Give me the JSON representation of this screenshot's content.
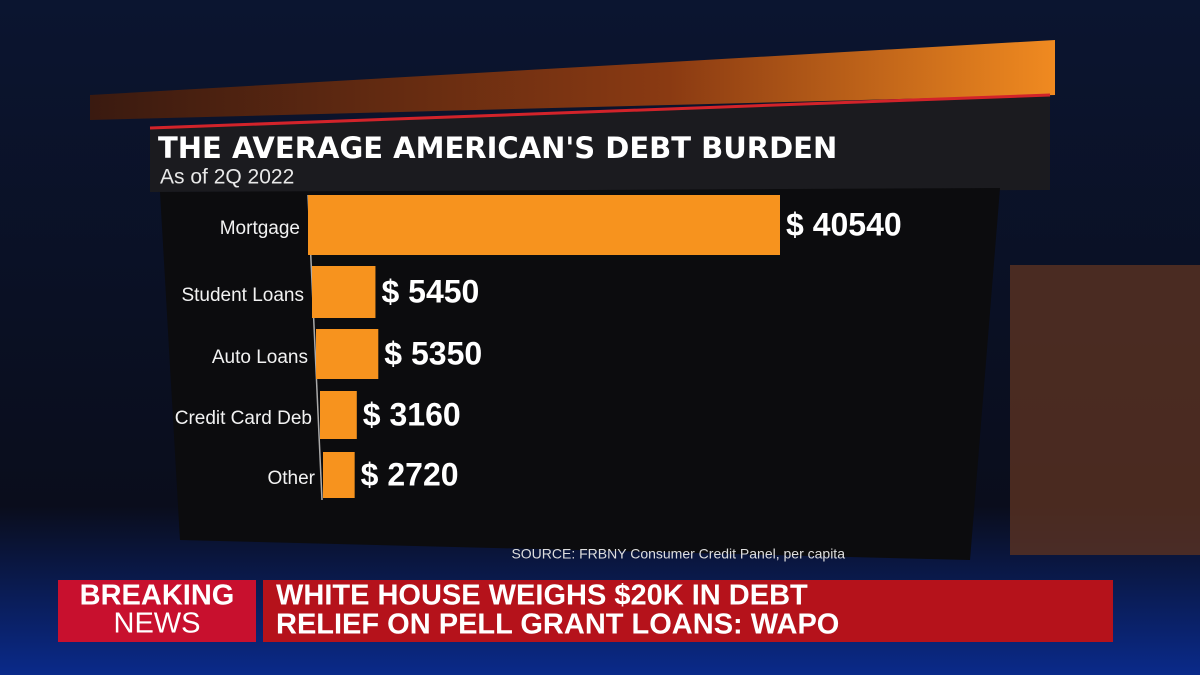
{
  "chart_data": {
    "type": "bar",
    "orientation": "horizontal",
    "title": "THE AVERAGE AMERICAN'S DEBT BURDEN",
    "subtitle": "As of 2Q 2022",
    "categories": [
      "Mortgage",
      "Student Loans",
      "Auto Loans",
      "Credit Card Deb",
      "Other"
    ],
    "values": [
      40540,
      5450,
      5350,
      3160,
      2720
    ],
    "value_labels": [
      "$ 40540",
      "$ 5450",
      "$ 5350",
      "$ 3160",
      "$ 2720"
    ],
    "color": "#f7931e",
    "source": "SOURCE: FRBNY Consumer Credit Panel, per capita"
  },
  "banner": {
    "tag": [
      "BREAKING",
      "NEWS"
    ],
    "headline": [
      "WHITE HOUSE WEIGHS $20K IN DEBT",
      "RELIEF ON PELL GRANT LOANS: WAPO"
    ]
  }
}
